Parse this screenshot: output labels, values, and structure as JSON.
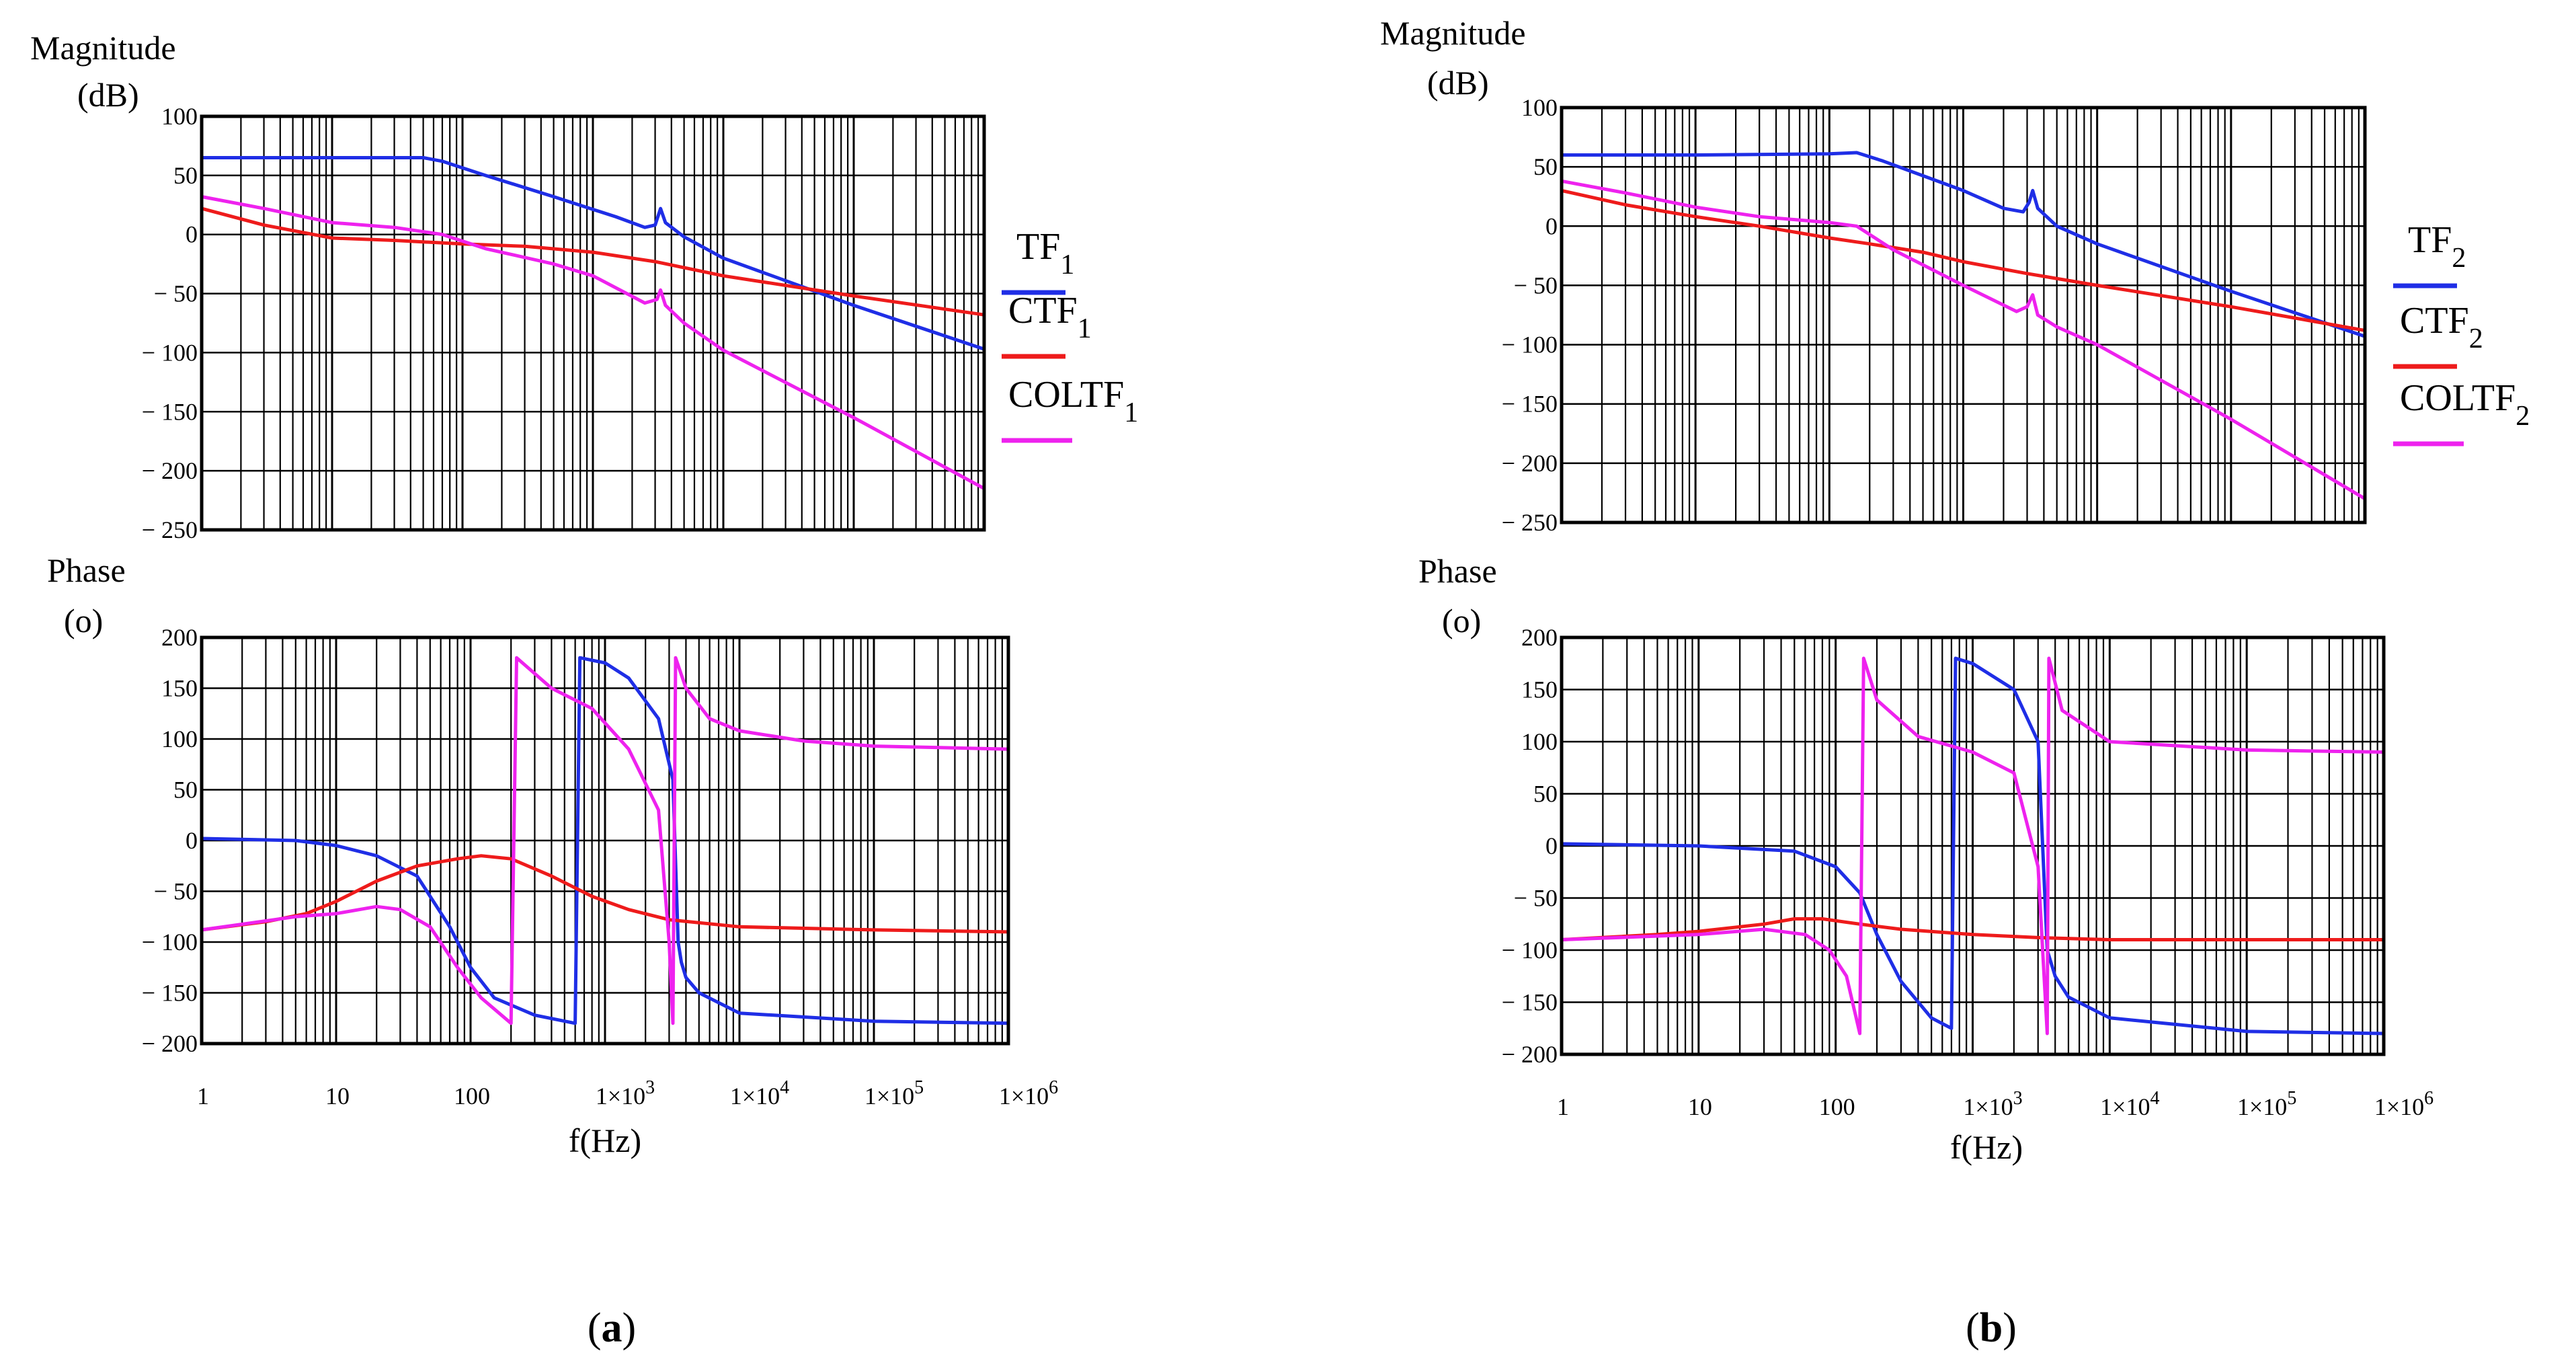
{
  "colors": {
    "tf": "#1f2ee6",
    "ctf": "#ee1b1b",
    "coltf": "#ee22ee",
    "grid": "#000000",
    "background": "#ffffff"
  },
  "panels": [
    {
      "caption_letter": "a",
      "magnitude_label": "Magnitude",
      "magnitude_unit": "(dB)",
      "phase_label": "Phase",
      "phase_unit": "(o)",
      "x_label": "f(Hz)",
      "x_ticks": [
        "1",
        "10",
        "100",
        "1×10",
        "1×10",
        "1×10",
        "1×10"
      ],
      "x_tick_exps": [
        "",
        "",
        "",
        "3",
        "4",
        "5",
        "6"
      ],
      "legend": [
        {
          "label": "TF",
          "sub": "1"
        },
        {
          "label": "CTF",
          "sub": "1"
        },
        {
          "label": "COLTF",
          "sub": "1"
        }
      ]
    },
    {
      "caption_letter": "b",
      "magnitude_label": "Magnitude",
      "magnitude_unit": "(dB)",
      "phase_label": "Phase",
      "phase_unit": "(o)",
      "x_label": "f(Hz)",
      "x_ticks": [
        "1",
        "10",
        "100",
        "1×10",
        "1×10",
        "1×10",
        "1×10"
      ],
      "x_tick_exps": [
        "",
        "",
        "",
        "3",
        "4",
        "5",
        "6"
      ],
      "legend": [
        {
          "label": "TF",
          "sub": "2"
        },
        {
          "label": "CTF",
          "sub": "2"
        },
        {
          "label": "COLTF",
          "sub": "2"
        }
      ]
    }
  ],
  "chart_data": [
    {
      "type": "line",
      "title": "Magnitude (a)",
      "xscale": "log",
      "xlim": [
        1,
        1000000
      ],
      "ylabel": "Magnitude (dB)",
      "ylim": [
        -250,
        100
      ],
      "yticks": [
        "100",
        "50",
        "0",
        "− 50",
        "− 100",
        "− 150",
        "− 200",
        "− 250"
      ],
      "series": [
        {
          "name": "TF1",
          "color": "tf",
          "points": [
            [
              1,
              65
            ],
            [
              10,
              65
            ],
            [
              50,
              65
            ],
            [
              70,
              62
            ],
            [
              150,
              50
            ],
            [
              500,
              32
            ],
            [
              1500,
              15
            ],
            [
              2500,
              6
            ],
            [
              3000,
              8
            ],
            [
              3300,
              22
            ],
            [
              3600,
              10
            ],
            [
              5000,
              -2
            ],
            [
              10000,
              -20
            ],
            [
              100000,
              -60
            ],
            [
              1000000,
              -97
            ]
          ]
        },
        {
          "name": "CTF1",
          "color": "ctf",
          "points": [
            [
              1,
              22
            ],
            [
              3,
              8
            ],
            [
              10,
              -3
            ],
            [
              30,
              -5
            ],
            [
              100,
              -8
            ],
            [
              300,
              -10
            ],
            [
              1000,
              -15
            ],
            [
              3000,
              -23
            ],
            [
              10000,
              -35
            ],
            [
              100000,
              -52
            ],
            [
              1000000,
              -68
            ]
          ]
        },
        {
          "name": "COLTF1",
          "color": "coltf",
          "points": [
            [
              1,
              32
            ],
            [
              3,
              22
            ],
            [
              10,
              10
            ],
            [
              30,
              6
            ],
            [
              70,
              0
            ],
            [
              150,
              -12
            ],
            [
              500,
              -25
            ],
            [
              1000,
              -35
            ],
            [
              2500,
              -58
            ],
            [
              3100,
              -55
            ],
            [
              3300,
              -47
            ],
            [
              3600,
              -60
            ],
            [
              5000,
              -75
            ],
            [
              10000,
              -98
            ],
            [
              100000,
              -155
            ],
            [
              1000000,
              -215
            ]
          ]
        }
      ]
    },
    {
      "type": "line",
      "title": "Phase (a)",
      "xscale": "log",
      "xlim": [
        1,
        1000000
      ],
      "xlabel": "f(Hz)",
      "ylabel": "Phase (o)",
      "ylim": [
        -200,
        200
      ],
      "yticks": [
        "200",
        "150",
        "100",
        "50",
        "0",
        "− 50",
        "− 100",
        "− 150",
        "− 200"
      ],
      "series": [
        {
          "name": "TF1",
          "color": "tf",
          "points": [
            [
              1,
              2
            ],
            [
              5,
              0
            ],
            [
              10,
              -5
            ],
            [
              20,
              -15
            ],
            [
              40,
              -35
            ],
            [
              70,
              -85
            ],
            [
              100,
              -125
            ],
            [
              150,
              -155
            ],
            [
              300,
              -172
            ],
            [
              600,
              -180
            ],
            [
              650,
              180
            ],
            [
              1000,
              175
            ],
            [
              1500,
              160
            ],
            [
              2500,
              120
            ],
            [
              3200,
              60
            ],
            [
              3500,
              -100
            ],
            [
              3700,
              -120
            ],
            [
              4000,
              -135
            ],
            [
              5000,
              -150
            ],
            [
              10000,
              -170
            ],
            [
              100000,
              -178
            ],
            [
              1000000,
              -180
            ]
          ]
        },
        {
          "name": "CTF1",
          "color": "ctf",
          "points": [
            [
              1,
              -88
            ],
            [
              3,
              -80
            ],
            [
              6,
              -72
            ],
            [
              10,
              -60
            ],
            [
              20,
              -40
            ],
            [
              40,
              -25
            ],
            [
              80,
              -18
            ],
            [
              120,
              -15
            ],
            [
              200,
              -18
            ],
            [
              400,
              -35
            ],
            [
              800,
              -55
            ],
            [
              1500,
              -68
            ],
            [
              3000,
              -78
            ],
            [
              10000,
              -85
            ],
            [
              100000,
              -88
            ],
            [
              1000000,
              -90
            ]
          ]
        },
        {
          "name": "COLTF1",
          "color": "coltf",
          "points": [
            [
              1,
              -88
            ],
            [
              5,
              -75
            ],
            [
              10,
              -72
            ],
            [
              20,
              -65
            ],
            [
              30,
              -68
            ],
            [
              50,
              -85
            ],
            [
              80,
              -125
            ],
            [
              120,
              -155
            ],
            [
              200,
              -180
            ],
            [
              220,
              180
            ],
            [
              400,
              150
            ],
            [
              800,
              130
            ],
            [
              1500,
              90
            ],
            [
              2500,
              30
            ],
            [
              3000,
              -100
            ],
            [
              3200,
              -180
            ],
            [
              3350,
              180
            ],
            [
              4000,
              150
            ],
            [
              6000,
              120
            ],
            [
              10000,
              108
            ],
            [
              30000,
              98
            ],
            [
              100000,
              93
            ],
            [
              1000000,
              90
            ]
          ]
        }
      ]
    },
    {
      "type": "line",
      "title": "Magnitude (b)",
      "xscale": "log",
      "xlim": [
        1,
        1000000
      ],
      "ylabel": "Magnitude (dB)",
      "ylim": [
        -250,
        100
      ],
      "yticks": [
        "100",
        "50",
        "0",
        "− 50",
        "− 100",
        "− 150",
        "− 200",
        "− 250"
      ],
      "series": [
        {
          "name": "TF2",
          "color": "tf",
          "points": [
            [
              1,
              60
            ],
            [
              10,
              60
            ],
            [
              100,
              61
            ],
            [
              160,
              62
            ],
            [
              250,
              55
            ],
            [
              1000,
              30
            ],
            [
              2000,
              15
            ],
            [
              2800,
              12
            ],
            [
              3100,
              20
            ],
            [
              3300,
              30
            ],
            [
              3600,
              15
            ],
            [
              5000,
              0
            ],
            [
              10000,
              -15
            ],
            [
              100000,
              -55
            ],
            [
              1000000,
              -93
            ]
          ]
        },
        {
          "name": "CTF2",
          "color": "ctf",
          "points": [
            [
              1,
              30
            ],
            [
              3,
              18
            ],
            [
              10,
              8
            ],
            [
              30,
              0
            ],
            [
              100,
              -10
            ],
            [
              200,
              -15
            ],
            [
              500,
              -22
            ],
            [
              1000,
              -30
            ],
            [
              3000,
              -40
            ],
            [
              10000,
              -50
            ],
            [
              100000,
              -68
            ],
            [
              1000000,
              -88
            ]
          ]
        },
        {
          "name": "COLTF2",
          "color": "coltf",
          "points": [
            [
              1,
              38
            ],
            [
              3,
              28
            ],
            [
              10,
              16
            ],
            [
              30,
              8
            ],
            [
              100,
              3
            ],
            [
              160,
              0
            ],
            [
              300,
              -20
            ],
            [
              1000,
              -50
            ],
            [
              2500,
              -72
            ],
            [
              3000,
              -68
            ],
            [
              3300,
              -58
            ],
            [
              3600,
              -75
            ],
            [
              5000,
              -85
            ],
            [
              10000,
              -100
            ],
            [
              100000,
              -163
            ],
            [
              1000000,
              -230
            ]
          ]
        }
      ]
    },
    {
      "type": "line",
      "title": "Phase (b)",
      "xscale": "log",
      "xlim": [
        1,
        1000000
      ],
      "xlabel": "f(Hz)",
      "ylabel": "Phase (o)",
      "ylim": [
        -200,
        200
      ],
      "yticks": [
        "200",
        "150",
        "100",
        "50",
        "0",
        "− 50",
        "− 100",
        "− 150",
        "− 200"
      ],
      "series": [
        {
          "name": "TF2",
          "color": "tf",
          "points": [
            [
              1,
              2
            ],
            [
              10,
              0
            ],
            [
              50,
              -5
            ],
            [
              100,
              -20
            ],
            [
              150,
              -45
            ],
            [
              200,
              -85
            ],
            [
              300,
              -130
            ],
            [
              500,
              -165
            ],
            [
              700,
              -175
            ],
            [
              750,
              180
            ],
            [
              1000,
              175
            ],
            [
              2000,
              150
            ],
            [
              3000,
              100
            ],
            [
              3500,
              -100
            ],
            [
              4000,
              -125
            ],
            [
              5000,
              -145
            ],
            [
              10000,
              -165
            ],
            [
              100000,
              -178
            ],
            [
              1000000,
              -180
            ]
          ]
        },
        {
          "name": "CTF2",
          "color": "ctf",
          "points": [
            [
              1,
              -90
            ],
            [
              5,
              -85
            ],
            [
              10,
              -82
            ],
            [
              30,
              -75
            ],
            [
              50,
              -70
            ],
            [
              80,
              -70
            ],
            [
              150,
              -75
            ],
            [
              300,
              -80
            ],
            [
              1000,
              -85
            ],
            [
              3000,
              -88
            ],
            [
              10000,
              -90
            ],
            [
              1000000,
              -90
            ]
          ]
        },
        {
          "name": "COLTF2",
          "color": "coltf",
          "points": [
            [
              1,
              -90
            ],
            [
              10,
              -85
            ],
            [
              30,
              -80
            ],
            [
              60,
              -85
            ],
            [
              90,
              -100
            ],
            [
              120,
              -125
            ],
            [
              150,
              -180
            ],
            [
              160,
              180
            ],
            [
              200,
              140
            ],
            [
              400,
              105
            ],
            [
              1000,
              90
            ],
            [
              2000,
              70
            ],
            [
              3000,
              -20
            ],
            [
              3500,
              -180
            ],
            [
              3600,
              180
            ],
            [
              4500,
              130
            ],
            [
              10000,
              100
            ],
            [
              100000,
              92
            ],
            [
              1000000,
              90
            ]
          ]
        }
      ]
    }
  ]
}
